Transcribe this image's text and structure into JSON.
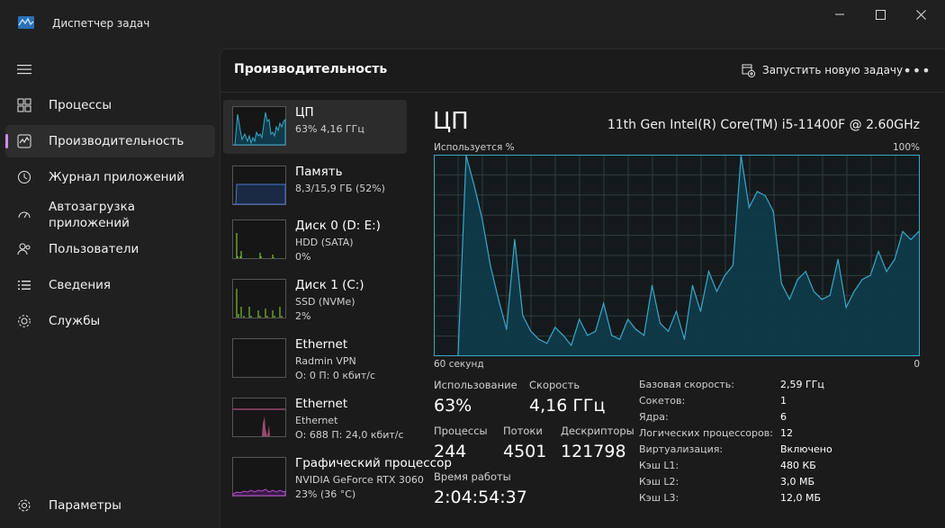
{
  "app": {
    "title": "Диспетчер задач"
  },
  "window_controls": {
    "minimize": "—",
    "maximize": "☐",
    "close": "✕"
  },
  "nav": {
    "items": [
      {
        "label": "Процессы",
        "icon": "processes-icon",
        "active": false
      },
      {
        "label": "Производительность",
        "icon": "performance-icon",
        "active": true
      },
      {
        "label": "Журнал приложений",
        "icon": "history-icon",
        "active": false
      },
      {
        "label": "Автозагрузка\nприложений",
        "label_line1": "Автозагрузка",
        "label_line2": "приложений",
        "icon": "startup-icon",
        "active": false
      },
      {
        "label": "Пользователи",
        "icon": "users-icon",
        "active": false
      },
      {
        "label": "Сведения",
        "icon": "details-icon",
        "active": false
      },
      {
        "label": "Службы",
        "icon": "services-icon",
        "active": false
      }
    ],
    "settings_label": "Параметры"
  },
  "header": {
    "title": "Производительность",
    "run_task_label": "Запустить новую задачу",
    "more_label": "•••"
  },
  "resources": [
    {
      "name": "ЦП",
      "sub1": "63% 4,16 ГГц",
      "sub2": "",
      "kind": "cpu",
      "color": "#3aa7c9"
    },
    {
      "name": "Память",
      "sub1": "8,3/15,9 ГБ (52%)",
      "sub2": "",
      "kind": "memory",
      "color": "#4a78c8"
    },
    {
      "name": "Диск 0 (D: E:)",
      "sub1": "HDD (SATA)",
      "sub2": "0%",
      "kind": "disk",
      "color": "#7fbf2e"
    },
    {
      "name": "Диск 1 (C:)",
      "sub1": "SSD (NVMe)",
      "sub2": "2%",
      "kind": "disk",
      "color": "#7fbf2e"
    },
    {
      "name": "Ethernet",
      "sub1": "Radmin VPN",
      "sub2": "О: 0 П: 0 кбит/с",
      "kind": "ethernet-idle",
      "color": "#c04a7a"
    },
    {
      "name": "Ethernet",
      "sub1": "Ethernet",
      "sub2": "О: 688 П: 24,0 кбит/с",
      "kind": "ethernet",
      "color": "#d65f96"
    },
    {
      "name": "Графический процессор",
      "sub1": "NVIDIA GeForce RTX 3060",
      "sub2": "23% (36 °C)",
      "kind": "gpu",
      "color": "#b34cc9"
    }
  ],
  "detail": {
    "title": "ЦП",
    "model": "11th Gen Intel(R) Core(TM) i5-11400F @ 2.60GHz",
    "usage_label": "Используется %",
    "usage_max": "100%",
    "time_left": "60 секунд",
    "time_right": "0",
    "stats": {
      "usage_label": "Использование",
      "usage_value": "63%",
      "speed_label": "Скорость",
      "speed_value": "4,16 ГГц",
      "processes_label": "Процессы",
      "processes_value": "244",
      "threads_label": "Потоки",
      "threads_value": "4501",
      "handles_label": "Дескрипторы",
      "handles_value": "121798",
      "uptime_label": "Время работы",
      "uptime_value": "2:04:54:37"
    },
    "specs": [
      {
        "k": "Базовая скорость:",
        "v": "2,59 ГГц"
      },
      {
        "k": "Сокетов:",
        "v": "1"
      },
      {
        "k": "Ядра:",
        "v": "6"
      },
      {
        "k": "Логических процессоров:",
        "v": "12"
      },
      {
        "k": "Виртуализация:",
        "v": "Включено"
      },
      {
        "k": "Кэш L1:",
        "v": "480 КБ"
      },
      {
        "k": "Кэш L2:",
        "v": "3,0 МБ"
      },
      {
        "k": "Кэш L3:",
        "v": "12,0 МБ"
      }
    ]
  },
  "colors": {
    "accent": "#cf8ce8",
    "cpu_line": "#3aa7c9",
    "cpu_fill": "#0f3a4a",
    "grid": "#2f3b40"
  },
  "chart_data": {
    "type": "area",
    "title": "",
    "xlabel": "",
    "ylabel": "Используется %",
    "xlim": [
      60,
      0
    ],
    "ylim": [
      0,
      100
    ],
    "x": [
      60,
      59,
      58,
      57,
      56,
      55,
      54,
      53,
      52,
      51,
      50,
      49,
      48,
      47,
      46,
      45,
      44,
      43,
      42,
      41,
      40,
      39,
      38,
      37,
      36,
      35,
      34,
      33,
      32,
      31,
      30,
      29,
      28,
      27,
      26,
      25,
      24,
      23,
      22,
      21,
      20,
      19,
      18,
      17,
      16,
      15,
      14,
      13,
      12,
      11,
      10,
      9,
      8,
      7,
      6,
      5,
      4,
      3,
      2,
      1,
      0
    ],
    "y": [
      null,
      null,
      null,
      0,
      100,
      85,
      68,
      45,
      28,
      13,
      58,
      20,
      12,
      8,
      6,
      14,
      10,
      5,
      18,
      10,
      12,
      26,
      10,
      8,
      18,
      13,
      10,
      35,
      16,
      12,
      22,
      8,
      35,
      22,
      42,
      32,
      40,
      45,
      100,
      74,
      82,
      80,
      72,
      36,
      28,
      38,
      42,
      32,
      28,
      30,
      48,
      24,
      32,
      38,
      40,
      52,
      42,
      48,
      62,
      58,
      62
    ],
    "grid": true,
    "legend": "none"
  }
}
